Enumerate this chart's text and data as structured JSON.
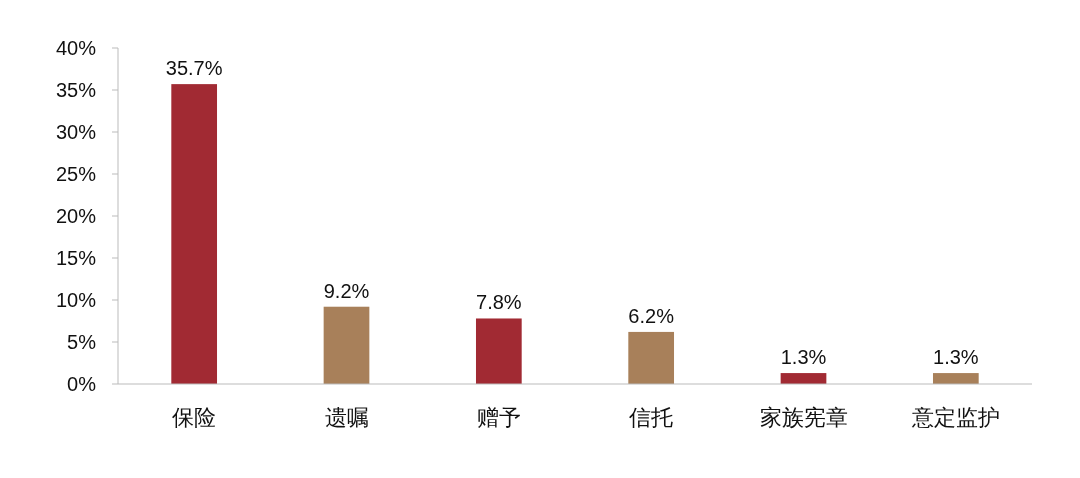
{
  "chart_data": {
    "type": "bar",
    "categories": [
      "保险",
      "遗嘱",
      "赠予",
      "信托",
      "家族宪章",
      "意定监护"
    ],
    "values": [
      35.7,
      9.2,
      7.8,
      6.2,
      1.3,
      1.3
    ],
    "colors": [
      "#a12a33",
      "#a8805a",
      "#a12a33",
      "#a8805a",
      "#a12a33",
      "#a8805a"
    ],
    "value_labels": [
      "35.7%",
      "9.2%",
      "7.8%",
      "6.2%",
      "1.3%",
      "1.3%"
    ],
    "ylim": [
      0,
      40
    ],
    "yticks": [
      {
        "value": 0,
        "label": "0%"
      },
      {
        "value": 5,
        "label": "5%"
      },
      {
        "value": 10,
        "label": "10%"
      },
      {
        "value": 15,
        "label": "15%"
      },
      {
        "value": 20,
        "label": "20%"
      },
      {
        "value": 25,
        "label": "25%"
      },
      {
        "value": 30,
        "label": "30%"
      },
      {
        "value": 35,
        "label": "35%"
      },
      {
        "value": 40,
        "label": "40%"
      }
    ],
    "grid": false
  }
}
